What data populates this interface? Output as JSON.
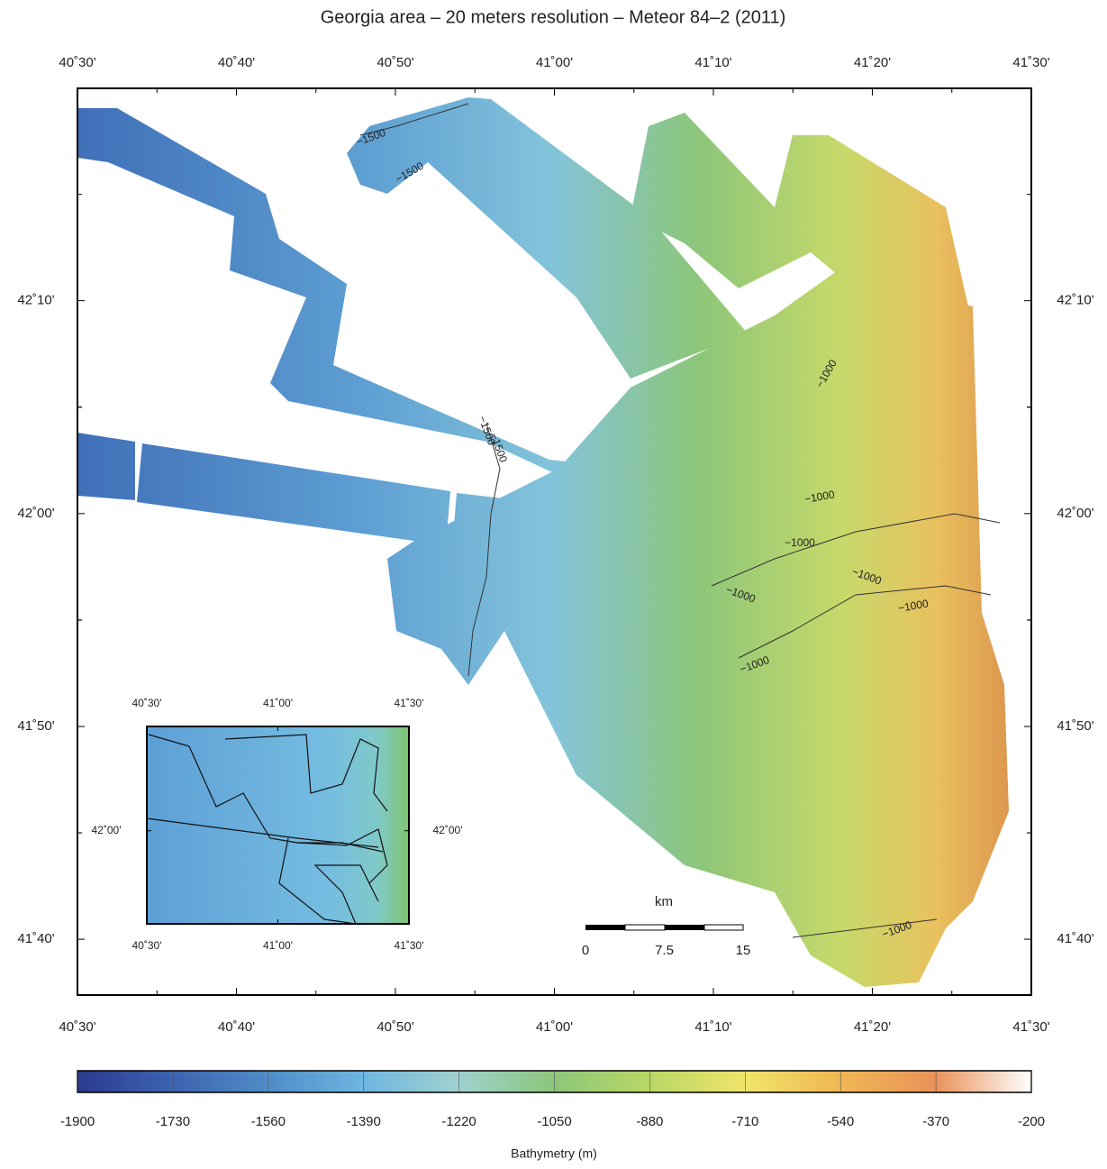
{
  "title": "Georgia area – 20 meters resolution – Meteor 84–2 (2011)",
  "map": {
    "xlim": [
      40.5,
      41.5
    ],
    "ylim": [
      41.623,
      42.333
    ],
    "xticks": [
      {
        "value": 40.5,
        "label": "40˚30'"
      },
      {
        "value": 40.6667,
        "label": "40˚40'"
      },
      {
        "value": 40.8333,
        "label": "40˚50'"
      },
      {
        "value": 41.0,
        "label": "41˚00'"
      },
      {
        "value": 41.1667,
        "label": "41˚10'"
      },
      {
        "value": 41.3333,
        "label": "41˚20'"
      },
      {
        "value": 41.5,
        "label": "41˚30'"
      }
    ],
    "yticks": [
      {
        "value": 41.6667,
        "label": "41˚40'"
      },
      {
        "value": 41.8333,
        "label": "41˚50'"
      },
      {
        "value": 42.0,
        "label": "42˚00'"
      },
      {
        "value": 42.1667,
        "label": "42˚10'"
      }
    ],
    "contour_labels": [
      "−1500",
      "−1500",
      "−1500",
      "−1500",
      "−1000",
      "−1000",
      "−1000",
      "−1000",
      "−1000",
      "−1000",
      "−1000",
      "−1000"
    ]
  },
  "inset": {
    "xlim": [
      40.5,
      41.5
    ],
    "ylim": [
      41.75,
      42.28
    ],
    "xticks": [
      {
        "value": 40.5,
        "label": "40˚30'"
      },
      {
        "value": 41.0,
        "label": "41˚00'"
      },
      {
        "value": 41.5,
        "label": "41˚30'"
      }
    ],
    "yticks": [
      {
        "value": 42.0,
        "label": "42˚00'"
      }
    ]
  },
  "scale_bar": {
    "unit": "km",
    "ticks": [
      0,
      7.5,
      15
    ]
  },
  "colorbar": {
    "label": "Bathymetry (m)",
    "range": [
      -1900,
      -200
    ],
    "ticks": [
      -1900,
      -1730,
      -1560,
      -1390,
      -1220,
      -1050,
      -880,
      -710,
      -540,
      -370,
      -200
    ],
    "colors": [
      "#2a3a8c",
      "#3d63b0",
      "#4f8cc8",
      "#6fb6e0",
      "#9fd1cf",
      "#8cc67a",
      "#b9d766",
      "#f0e46a",
      "#f0b653",
      "#e9925a",
      "#ffffff"
    ]
  }
}
